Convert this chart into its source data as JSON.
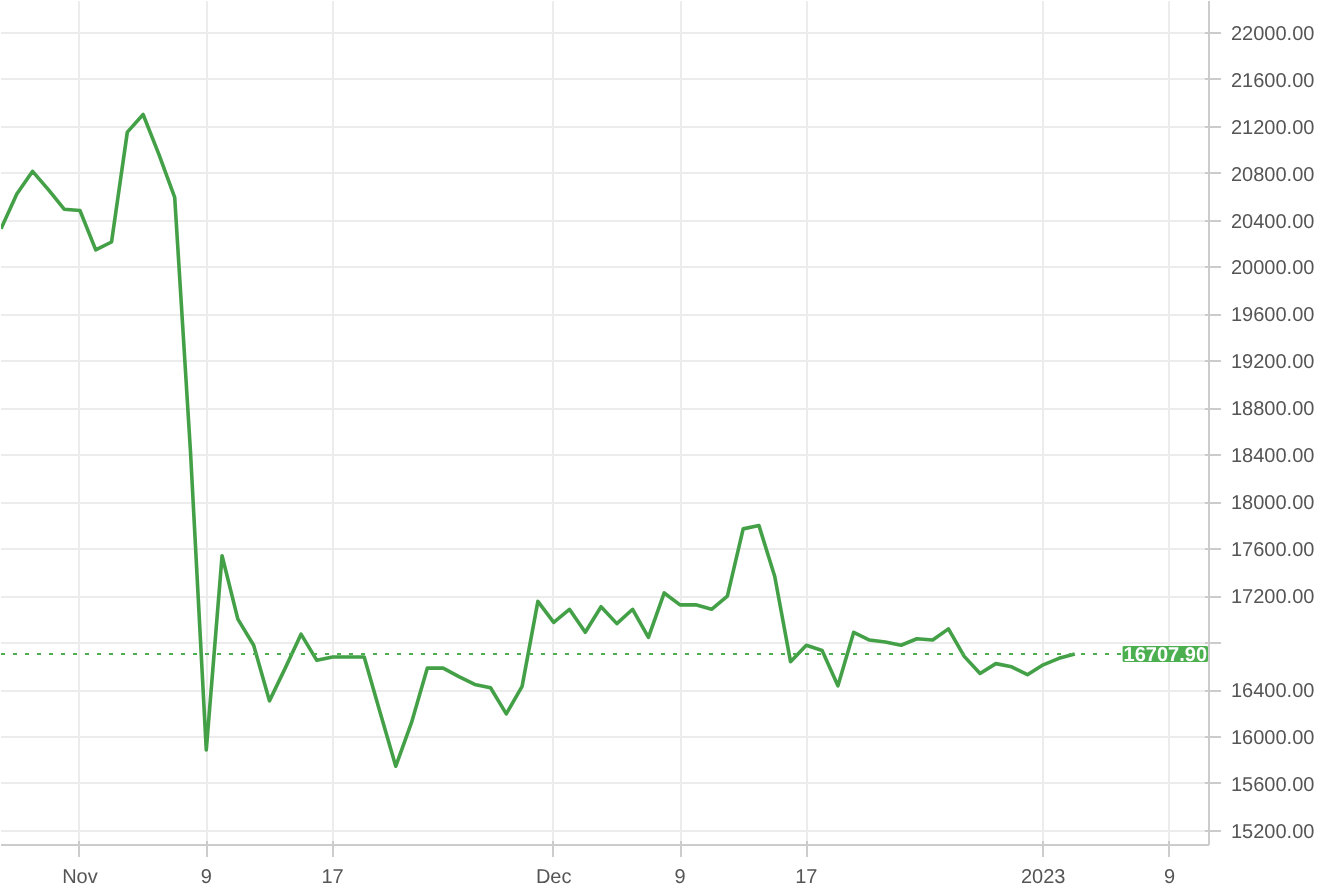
{
  "chart_data": {
    "type": "line",
    "x": [
      "2022-10-27",
      "2022-10-28",
      "2022-10-29",
      "2022-10-30",
      "2022-10-31",
      "2022-11-01",
      "2022-11-02",
      "2022-11-03",
      "2022-11-04",
      "2022-11-05",
      "2022-11-06",
      "2022-11-07",
      "2022-11-08",
      "2022-11-09",
      "2022-11-10",
      "2022-11-11",
      "2022-11-12",
      "2022-11-13",
      "2022-11-14",
      "2022-11-15",
      "2022-11-16",
      "2022-11-17",
      "2022-11-18",
      "2022-11-19",
      "2022-11-20",
      "2022-11-21",
      "2022-11-22",
      "2022-11-23",
      "2022-11-24",
      "2022-11-25",
      "2022-11-26",
      "2022-11-27",
      "2022-11-28",
      "2022-11-29",
      "2022-11-30",
      "2022-12-01",
      "2022-12-02",
      "2022-12-03",
      "2022-12-04",
      "2022-12-05",
      "2022-12-06",
      "2022-12-07",
      "2022-12-08",
      "2022-12-09",
      "2022-12-10",
      "2022-12-11",
      "2022-12-12",
      "2022-12-13",
      "2022-12-14",
      "2022-12-15",
      "2022-12-16",
      "2022-12-17",
      "2022-12-18",
      "2022-12-19",
      "2022-12-20",
      "2022-12-21",
      "2022-12-22",
      "2022-12-23",
      "2022-12-24",
      "2022-12-25",
      "2022-12-26",
      "2022-12-27",
      "2022-12-28",
      "2022-12-29",
      "2022-12-30",
      "2022-12-31",
      "2023-01-01",
      "2023-01-02",
      "2023-01-03"
    ],
    "series": [
      {
        "color": "#43a047",
        "values": [
          20330,
          20625,
          20819,
          20663,
          20496,
          20485,
          20150,
          20217,
          21153,
          21303,
          20964,
          20597,
          18430,
          15890,
          17544,
          17004,
          16782,
          16308,
          16587,
          16876,
          16653,
          16682,
          16682,
          16682,
          16214,
          15751,
          16124,
          16587,
          16587,
          16515,
          16448,
          16420,
          16197,
          16431,
          17155,
          16976,
          17088,
          16892,
          17110,
          16966,
          17088,
          16849,
          17227,
          17126,
          17126,
          17088,
          17200,
          17773,
          17801,
          17367,
          16642,
          16782,
          16737,
          16436,
          16892,
          16826,
          16809,
          16782,
          16837,
          16826,
          16921,
          16687,
          16541,
          16625,
          16598,
          16531,
          16615,
          16670,
          16707.9
        ]
      }
    ],
    "xlim": [
      "2022-10-27",
      "2023-01-11T12:00"
    ],
    "xticks": [
      {
        "value": "2022-11-01",
        "label": "Nov"
      },
      {
        "value": "2022-11-09",
        "label": "9"
      },
      {
        "value": "2022-11-17",
        "label": "17"
      },
      {
        "value": "2022-12-01",
        "label": "Dec"
      },
      {
        "value": "2022-12-09",
        "label": "9"
      },
      {
        "value": "2022-12-17",
        "label": "17"
      },
      {
        "value": "2023-01-01",
        "label": "2023"
      },
      {
        "value": "2023-01-09",
        "label": "9"
      }
    ],
    "ylim": [
      15080,
      22270
    ],
    "yticks": [
      {
        "value": 15200,
        "label": "15200.00"
      },
      {
        "value": 15600,
        "label": "15600.00"
      },
      {
        "value": 16000,
        "label": "16000.00"
      },
      {
        "value": 16400,
        "label": "16400.00"
      },
      {
        "value": 16800,
        "label": null
      },
      {
        "value": 17200,
        "label": "17200.00"
      },
      {
        "value": 17600,
        "label": "17600.00"
      },
      {
        "value": 18000,
        "label": "18000.00"
      },
      {
        "value": 18400,
        "label": "18400.00"
      },
      {
        "value": 18800,
        "label": "18800.00"
      },
      {
        "value": 19200,
        "label": "19200.00"
      },
      {
        "value": 19600,
        "label": "19600.00"
      },
      {
        "value": 20000,
        "label": "20000.00"
      },
      {
        "value": 20400,
        "label": "20400.00"
      },
      {
        "value": 20800,
        "label": "20800.00"
      },
      {
        "value": 21200,
        "label": "21200.00"
      },
      {
        "value": 21600,
        "label": "21600.00"
      },
      {
        "value": 22000,
        "label": "22000.00"
      }
    ],
    "ref_lines": [
      {
        "axis": "y",
        "value": 16707.9,
        "label": "16707.90",
        "color": "#4caf50",
        "line_style": "dotted"
      }
    ],
    "grid": true,
    "marker": "none",
    "line_style": "solid"
  }
}
